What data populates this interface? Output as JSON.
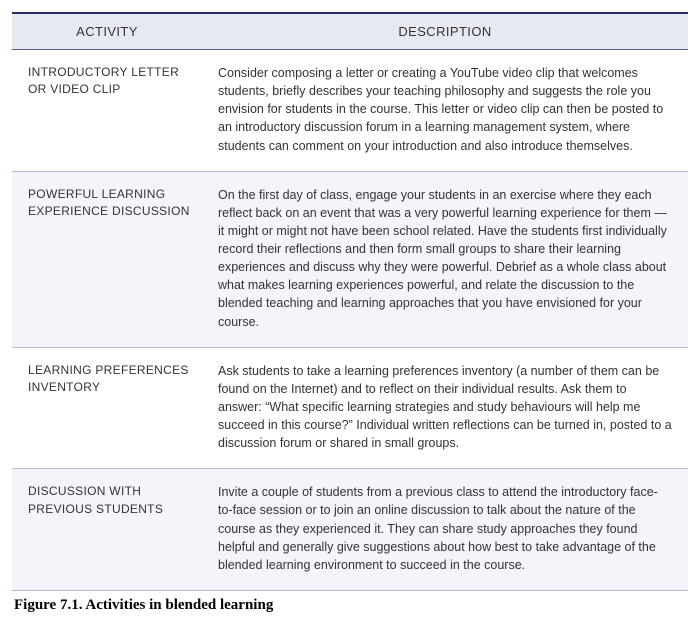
{
  "table": {
    "headers": {
      "activity": "ACTIVITY",
      "description": "DESCRIPTION"
    },
    "rows": [
      {
        "activity": "INTRODUCTORY LETTER OR VIDEO CLIP",
        "description": "Consider composing a letter or creating a YouTube video clip that welcomes students, briefly describes your teaching philosophy and suggests the role you envision for students in the course. This letter or video clip can then be posted to an introductory discussion forum in a learning management system, where students can comment on your introduction and also introduce themselves."
      },
      {
        "activity": "POWERFUL LEARNING EXPERIENCE DISCUSSION",
        "description": "On the first day of class, engage your students in an exercise where they each reflect back on an event that was a very powerful learning experience for them — it might or might not have been school related. Have the students first individually record their reflections and then form small groups to share their learning experiences and discuss why they were powerful. Debrief as a whole class about what makes learning experiences powerful, and relate the discussion to the blended teaching and learning approaches that you have envisioned for your course."
      },
      {
        "activity": "LEARNING PREFERENCES INVENTORY",
        "description": "Ask students to take a learning preferences inventory (a number of them can be found on the Internet) and to reflect on their individual results. Ask them to answer: “What specific learning strategies and study behaviours will help me succeed in this course?” Individual written reflections can be turned in, posted to a discussion forum or shared in small groups."
      },
      {
        "activity": "DISCUSSION WITH PREVIOUS STUDENTS",
        "description": "Invite a couple of students from a previous class to attend the introductory face-to-face session or to join an online discussion to talk about the nature of the course as they experienced it. They can share study approaches they found helpful and generally give suggestions about how best to take advantage of the blended learning environment to succeed in the course."
      }
    ]
  },
  "caption": "Figure 7.1. Activities in blended learning",
  "colors": {
    "header_bg": "#e6e9f2",
    "alt_row_bg": "#f3f5fa",
    "border_top": "#2a2a6a",
    "row_border": "#b8b8d6"
  }
}
